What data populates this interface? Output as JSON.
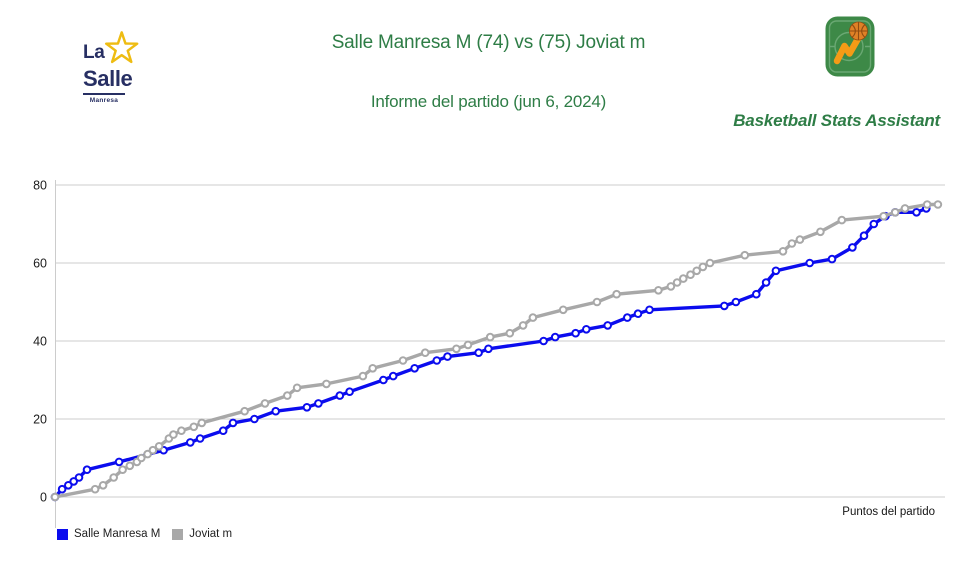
{
  "header": {
    "title": "Salle Manresa M (74) vs (75) Joviat m",
    "subtitle": "Informe del partido (jun 6, 2024)",
    "app_name": "Basketball Stats Assistant",
    "title_color": "#2e7d46",
    "logo": {
      "line1": "La",
      "line2": "Salle",
      "line3": "Manresa",
      "text_color": "#272f63",
      "star_color": "#eebc12"
    }
  },
  "chart_data": {
    "type": "line",
    "title": "",
    "xlabel": "Puntos del partido",
    "ylabel": "",
    "ylim": [
      0,
      80
    ],
    "yticks": [
      0,
      20,
      40,
      60,
      80
    ],
    "x_scale": [
      0,
      100
    ],
    "grid": "horizontal-only",
    "grid_color": "#cccccc",
    "legend_position": "bottom-left",
    "marker": "open-circle",
    "series": [
      {
        "name": "Salle Manresa M",
        "color": "#0b0cee",
        "final_score": 74,
        "points": [
          [
            0,
            0
          ],
          [
            0.8,
            2
          ],
          [
            1.5,
            3
          ],
          [
            2.1,
            4
          ],
          [
            2.7,
            5
          ],
          [
            3.6,
            7
          ],
          [
            7.2,
            9
          ],
          [
            12.2,
            12
          ],
          [
            15.2,
            14
          ],
          [
            16.3,
            15
          ],
          [
            18.9,
            17
          ],
          [
            20,
            19
          ],
          [
            22.4,
            20
          ],
          [
            24.8,
            22
          ],
          [
            28.3,
            23
          ],
          [
            29.6,
            24
          ],
          [
            32,
            26
          ],
          [
            33.1,
            27
          ],
          [
            36.9,
            30
          ],
          [
            38,
            31
          ],
          [
            40.4,
            33
          ],
          [
            42.9,
            35
          ],
          [
            44.1,
            36
          ],
          [
            47.6,
            37
          ],
          [
            48.7,
            38
          ],
          [
            54.9,
            40
          ],
          [
            56.2,
            41
          ],
          [
            58.5,
            42
          ],
          [
            59.7,
            43
          ],
          [
            62.1,
            44
          ],
          [
            64.3,
            46
          ],
          [
            65.5,
            47
          ],
          [
            66.8,
            48
          ],
          [
            75.2,
            49
          ],
          [
            76.5,
            50
          ],
          [
            78.8,
            52
          ],
          [
            79.9,
            55
          ],
          [
            81,
            58
          ],
          [
            84.8,
            60
          ],
          [
            87.3,
            61
          ],
          [
            89.6,
            64
          ],
          [
            90.9,
            67
          ],
          [
            92,
            70
          ],
          [
            93.3,
            72
          ],
          [
            94.4,
            73
          ],
          [
            96.8,
            73
          ],
          [
            97.9,
            74
          ]
        ]
      },
      {
        "name": "Joviat m",
        "color": "#a8a8a8",
        "final_score": 75,
        "points": [
          [
            0,
            0
          ],
          [
            4.5,
            2
          ],
          [
            5.4,
            3
          ],
          [
            6.6,
            5
          ],
          [
            7.6,
            7
          ],
          [
            8.4,
            8
          ],
          [
            9.2,
            9
          ],
          [
            9.7,
            10
          ],
          [
            10.4,
            11
          ],
          [
            11,
            12
          ],
          [
            11.7,
            13
          ],
          [
            12.8,
            15
          ],
          [
            13.3,
            16
          ],
          [
            14.2,
            17
          ],
          [
            15.6,
            18
          ],
          [
            16.5,
            19
          ],
          [
            21.3,
            22
          ],
          [
            23.6,
            24
          ],
          [
            26.1,
            26
          ],
          [
            27.2,
            28
          ],
          [
            30.5,
            29
          ],
          [
            34.6,
            31
          ],
          [
            35.7,
            33
          ],
          [
            39.1,
            35
          ],
          [
            41.6,
            37
          ],
          [
            45.1,
            38
          ],
          [
            46.4,
            39
          ],
          [
            48.9,
            41
          ],
          [
            51.1,
            42
          ],
          [
            52.6,
            44
          ],
          [
            53.7,
            46
          ],
          [
            57.1,
            48
          ],
          [
            60.9,
            50
          ],
          [
            63.1,
            52
          ],
          [
            67.8,
            53
          ],
          [
            69.2,
            54
          ],
          [
            69.9,
            55
          ],
          [
            70.6,
            56
          ],
          [
            71.4,
            57
          ],
          [
            72.1,
            58
          ],
          [
            72.8,
            59
          ],
          [
            73.6,
            60
          ],
          [
            77.5,
            62
          ],
          [
            81.8,
            63
          ],
          [
            82.8,
            65
          ],
          [
            83.7,
            66
          ],
          [
            86,
            68
          ],
          [
            88.4,
            71
          ],
          [
            93.1,
            72
          ],
          [
            94.4,
            73
          ],
          [
            95.5,
            74
          ],
          [
            98,
            75
          ],
          [
            99.2,
            75
          ]
        ]
      }
    ]
  }
}
